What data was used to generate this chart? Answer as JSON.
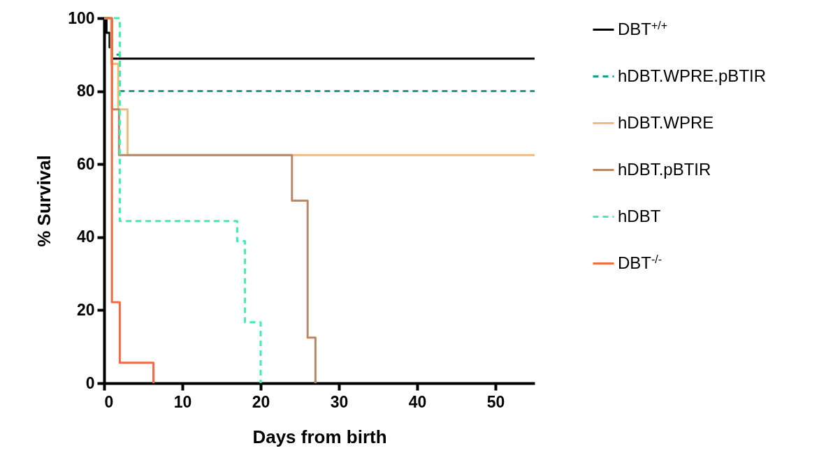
{
  "chart_data": {
    "type": "step",
    "xlabel": "Days from birth",
    "ylabel": "% Survival",
    "xlim": [
      0,
      55
    ],
    "xticks": [
      0,
      10,
      20,
      30,
      40,
      50
    ],
    "ylim": [
      0,
      100
    ],
    "yticks": [
      0,
      20,
      40,
      60,
      80,
      100
    ],
    "grid": false,
    "legend": "right",
    "marker": "none",
    "series": [
      {
        "name": "DBT$^{+/+}$",
        "color": "#000000",
        "line_style": "solid",
        "x": [
          0,
          0.3,
          0.7,
          1,
          55
        ],
        "values": [
          100,
          96,
          92,
          88.9,
          88.9
        ]
      },
      {
        "name": "hDBT.WPRE.pBTIR",
        "color": "#1b9e86",
        "line_style": "dashed",
        "x": [
          0,
          1,
          2,
          55
        ],
        "values": [
          100,
          90,
          80,
          80
        ]
      },
      {
        "name": "hDBT.WPRE",
        "color": "#f5b97a",
        "line_style": "solid",
        "x": [
          0,
          0.9,
          1.8,
          3,
          55
        ],
        "values": [
          100,
          87.5,
          75,
          62.5,
          62.5
        ]
      },
      {
        "name": "hDBT.pBTIR",
        "color": "#b5896b",
        "line_style": "solid",
        "x": [
          0,
          1,
          1.9,
          24,
          26,
          27
        ],
        "values": [
          100,
          75,
          62.5,
          50,
          12.5,
          0
        ]
      },
      {
        "name": "hDBT",
        "color": "#3ef0b0",
        "line_style": "dashed",
        "x": [
          0,
          2,
          17,
          18,
          20
        ],
        "values": [
          100,
          44.4,
          38.9,
          16.7,
          0
        ]
      },
      {
        "name": "DBT$^{-/-}$",
        "color": "#f26b43",
        "line_style": "solid",
        "x": [
          0,
          1,
          2,
          6.3
        ],
        "values": [
          100,
          22.2,
          5.6,
          0
        ]
      }
    ]
  }
}
